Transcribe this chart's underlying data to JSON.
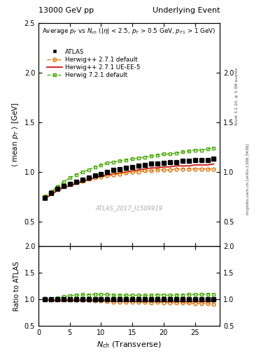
{
  "title_left": "13000 GeV pp",
  "title_right": "Underlying Event",
  "subtitle": "Average $p_T$ vs $N_{ch}$ ($|\\eta|$ < 2.5, $p_T$ > 0.5 GeV, $p_{T1}$ > 1 GeV)",
  "ylabel_main": "$\\langle$ mean $p_T$ $\\rangle$ [GeV]",
  "ylabel_ratio": "Ratio to ATLAS",
  "xlabel": "$N_{ch}$ (Transverse)",
  "watermark": "ATLAS_2017_I1509919",
  "right_label_top": "Rivet 3.1.10, ≥ 3.3M events",
  "right_label_bot": "mcplots.cern.ch [arXiv:1306.3436]",
  "ylim_main": [
    0.25,
    2.5
  ],
  "ylim_ratio": [
    0.5,
    2.0
  ],
  "yticks_main": [
    0.5,
    1.0,
    1.5,
    2.0,
    2.5
  ],
  "yticks_ratio": [
    0.5,
    1.0,
    1.5,
    2.0
  ],
  "atlas_x": [
    1,
    2,
    3,
    4,
    5,
    6,
    7,
    8,
    9,
    10,
    11,
    12,
    13,
    14,
    15,
    16,
    17,
    18,
    19,
    20,
    21,
    22,
    23,
    24,
    25,
    26,
    27,
    28
  ],
  "atlas_y": [
    0.74,
    0.79,
    0.83,
    0.86,
    0.88,
    0.9,
    0.92,
    0.94,
    0.96,
    0.98,
    1.0,
    1.02,
    1.03,
    1.04,
    1.05,
    1.06,
    1.07,
    1.08,
    1.08,
    1.09,
    1.1,
    1.1,
    1.11,
    1.11,
    1.12,
    1.12,
    1.12,
    1.13
  ],
  "hw271d_x": [
    1,
    2,
    3,
    4,
    5,
    6,
    7,
    8,
    9,
    10,
    11,
    12,
    13,
    14,
    15,
    16,
    17,
    18,
    19,
    20,
    21,
    22,
    23,
    24,
    25,
    26,
    27,
    28
  ],
  "hw271d_y": [
    0.75,
    0.79,
    0.83,
    0.86,
    0.88,
    0.89,
    0.91,
    0.93,
    0.94,
    0.95,
    0.96,
    0.97,
    0.98,
    0.99,
    1.0,
    1.0,
    1.01,
    1.01,
    1.02,
    1.02,
    1.02,
    1.03,
    1.03,
    1.03,
    1.03,
    1.03,
    1.03,
    1.03
  ],
  "hw271ue_x": [
    1,
    2,
    3,
    4,
    5,
    6,
    7,
    8,
    9,
    10,
    11,
    12,
    13,
    14,
    15,
    16,
    17,
    18,
    19,
    20,
    21,
    22,
    23,
    24,
    25,
    26,
    27,
    28
  ],
  "hw271ue_y": [
    0.73,
    0.77,
    0.81,
    0.84,
    0.86,
    0.88,
    0.9,
    0.92,
    0.94,
    0.96,
    0.97,
    0.98,
    0.99,
    1.0,
    1.01,
    1.02,
    1.03,
    1.04,
    1.04,
    1.05,
    1.05,
    1.06,
    1.06,
    1.06,
    1.07,
    1.07,
    1.07,
    1.08
  ],
  "hw721d_x": [
    1,
    2,
    3,
    4,
    5,
    6,
    7,
    8,
    9,
    10,
    11,
    12,
    13,
    14,
    15,
    16,
    17,
    18,
    19,
    20,
    21,
    22,
    23,
    24,
    25,
    26,
    27,
    28
  ],
  "hw721d_y": [
    0.75,
    0.8,
    0.85,
    0.9,
    0.94,
    0.97,
    1.0,
    1.02,
    1.05,
    1.07,
    1.09,
    1.1,
    1.11,
    1.12,
    1.13,
    1.14,
    1.15,
    1.16,
    1.17,
    1.18,
    1.18,
    1.19,
    1.2,
    1.21,
    1.22,
    1.22,
    1.23,
    1.24
  ],
  "color_atlas": "#000000",
  "color_hw271d": "#e07000",
  "color_hw271ue": "#cc0000",
  "color_hw721d": "#44aa00",
  "background_color": "#ffffff"
}
